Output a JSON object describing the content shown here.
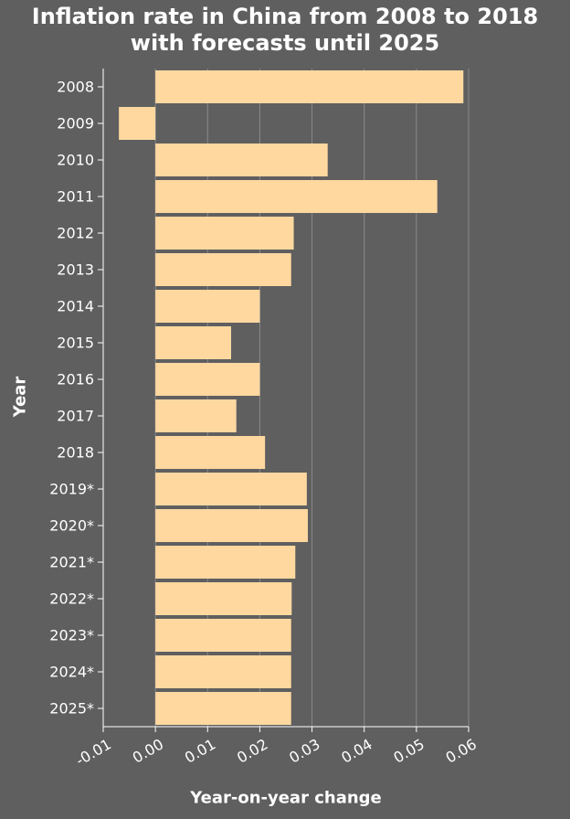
{
  "chart_data": {
    "type": "bar",
    "orientation": "horizontal",
    "title_lines": [
      "Inflation rate in China from 2008 to 2018",
      "with forecasts until 2025"
    ],
    "xlabel": "Year-on-year change",
    "ylabel": "Year",
    "categories": [
      "2008",
      "2009",
      "2010",
      "2011",
      "2012",
      "2013",
      "2014",
      "2015",
      "2016",
      "2017",
      "2018",
      "2019*",
      "2020*",
      "2021*",
      "2022*",
      "2023*",
      "2024*",
      "2025*"
    ],
    "values": [
      0.059,
      -0.007,
      0.033,
      0.054,
      0.0265,
      0.026,
      0.02,
      0.0145,
      0.02,
      0.0155,
      0.021,
      0.029,
      0.0292,
      0.0268,
      0.0261,
      0.026,
      0.026,
      0.026
    ],
    "xlim": [
      -0.01,
      0.06
    ],
    "xticks": [
      "-0.01",
      "0.00",
      "0.01",
      "0.02",
      "0.03",
      "0.04",
      "0.05",
      "0.06"
    ],
    "xtick_values": [
      -0.01,
      0.0,
      0.01,
      0.02,
      0.03,
      0.04,
      0.05,
      0.06
    ],
    "grid": true,
    "colors": {
      "bar": "#ffd8a0",
      "background": "#5f5f5f",
      "grid": "#8a8a8a",
      "text": "#ffffff"
    }
  }
}
